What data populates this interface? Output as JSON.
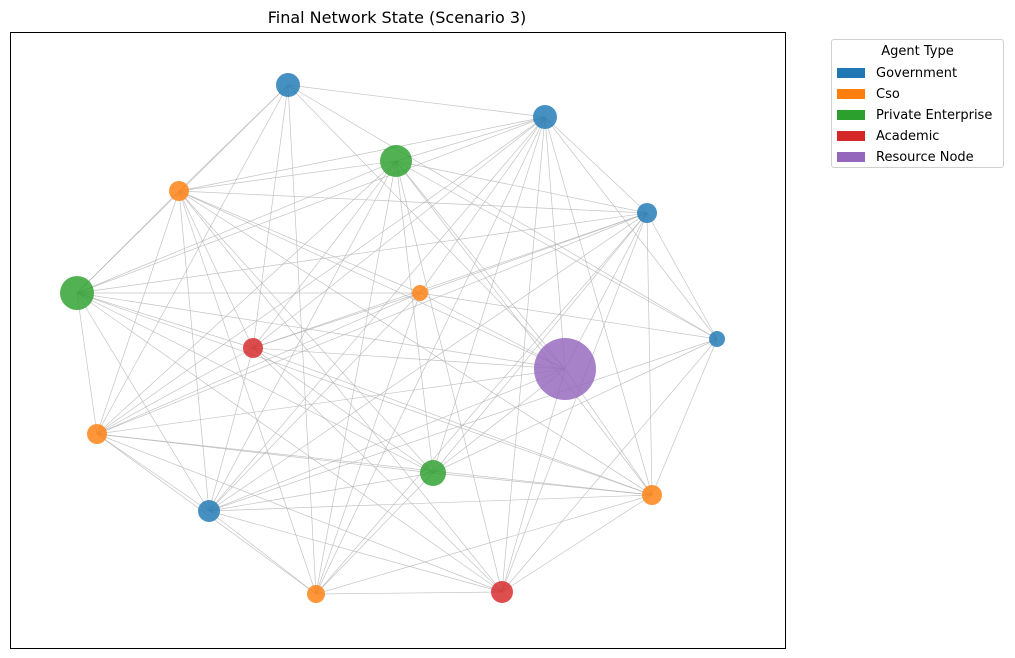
{
  "chart_data": {
    "type": "network",
    "title": "Final Network State (Scenario 3)",
    "legend": {
      "title": "Agent Type",
      "placement": "outside-top-right",
      "items": [
        {
          "label": "Government",
          "color": "#1f77b4"
        },
        {
          "label": "Cso",
          "color": "#ff7f0e"
        },
        {
          "label": "Private Enterprise",
          "color": "#2ca02c"
        },
        {
          "label": "Academic",
          "color": "#d62728"
        },
        {
          "label": "Resource Node",
          "color": "#9467bd"
        }
      ]
    },
    "node_types": [
      "government",
      "cso",
      "private",
      "academic",
      "resource"
    ],
    "nodes": [
      {
        "id": 0,
        "type": "government"
      },
      {
        "id": 1,
        "type": "government"
      },
      {
        "id": 2,
        "type": "government"
      },
      {
        "id": 3,
        "type": "government"
      },
      {
        "id": 4,
        "type": "government"
      },
      {
        "id": 5,
        "type": "cso"
      },
      {
        "id": 6,
        "type": "cso"
      },
      {
        "id": 7,
        "type": "cso"
      },
      {
        "id": 8,
        "type": "cso"
      },
      {
        "id": 9,
        "type": "cso"
      },
      {
        "id": 10,
        "type": "private"
      },
      {
        "id": 11,
        "type": "private"
      },
      {
        "id": 12,
        "type": "private"
      },
      {
        "id": 13,
        "type": "academic"
      },
      {
        "id": 14,
        "type": "academic"
      },
      {
        "id": 15,
        "type": "resource"
      }
    ]
  }
}
